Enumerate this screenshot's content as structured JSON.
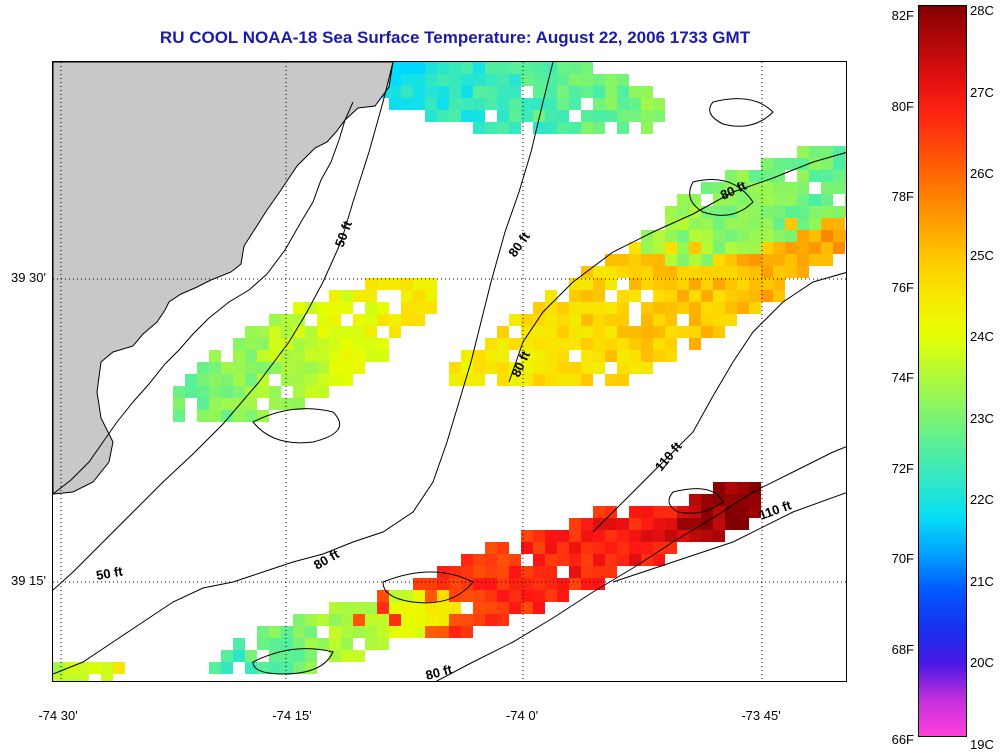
{
  "title": "RU COOL  NOAA-18  Sea Surface Temperature:  August 22, 2006 1733 GMT",
  "y_axis_ticks": [
    "39 30'",
    "39 15'"
  ],
  "x_axis_ticks": [
    "-74 30'",
    "-74 15'",
    "-74 0'",
    "-73 45'"
  ],
  "colorbar": {
    "fahrenheit_labels": [
      "82F",
      "80F",
      "78F",
      "76F",
      "74F",
      "72F",
      "70F",
      "68F",
      "66F"
    ],
    "celsius_labels": [
      "28C",
      "27C",
      "26C",
      "25C",
      "24C",
      "23C",
      "22C",
      "21C",
      "20C",
      "19C"
    ]
  },
  "contour_labels": [
    {
      "text": "50 ft",
      "depth": 50
    },
    {
      "text": "50 ft",
      "depth": 50
    },
    {
      "text": "80 ft",
      "depth": 80
    },
    {
      "text": "80 ft",
      "depth": 80
    },
    {
      "text": "80 ft",
      "depth": 80
    },
    {
      "text": "80 ft",
      "depth": 80
    },
    {
      "text": "80 ft",
      "depth": 80
    },
    {
      "text": "110 ft",
      "depth": 110
    },
    {
      "text": "110 ft",
      "depth": 110
    }
  ],
  "colors": {
    "title": "#1c1ca8",
    "land": "#c8c8c8",
    "contour": "#000000",
    "grid": "#000000"
  }
}
